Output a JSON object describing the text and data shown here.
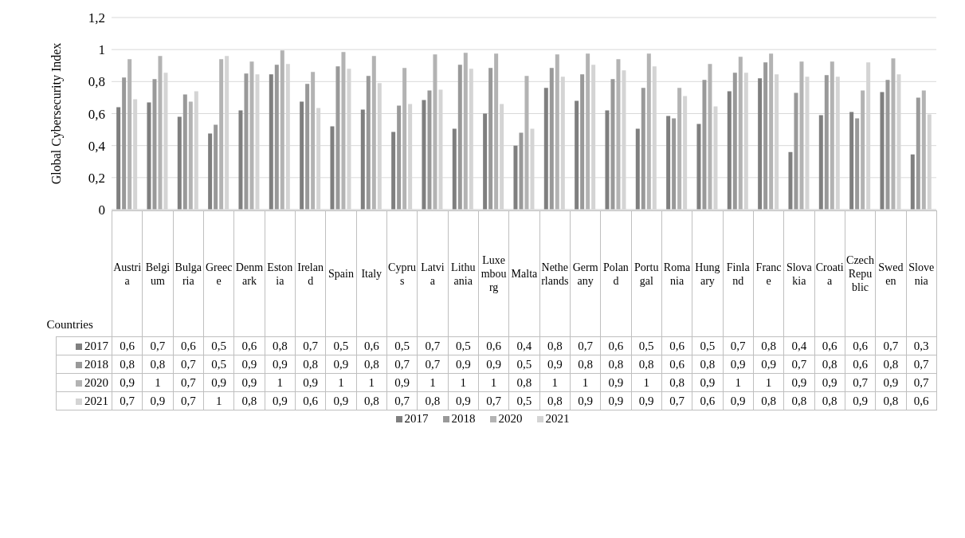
{
  "chart_data": {
    "type": "bar",
    "ylabel": "Global Cybersecurity Index",
    "xlabel": "Countries",
    "categories": [
      "Austria",
      "Belgium",
      "Bulgaria",
      "Greece",
      "Denmark",
      "Estonia",
      "Ireland",
      "Spain",
      "Italy",
      "Cyprus",
      "Latvia",
      "Lithuania",
      "Luxembourg",
      "Malta",
      "Netherlands",
      "Germany",
      "Poland",
      "Portugal",
      "Romania",
      "Hungary",
      "Finland",
      "France",
      "Slovakia",
      "Croatia",
      "Czech Republic",
      "Sweden",
      "Slovenia"
    ],
    "series": [
      {
        "name": "2017",
        "color": "#7f7f7f",
        "values": [
          0.64,
          0.67,
          0.58,
          0.475,
          0.62,
          0.845,
          0.675,
          0.52,
          0.625,
          0.485,
          0.685,
          0.505,
          0.6,
          0.4,
          0.76,
          0.68,
          0.62,
          0.505,
          0.585,
          0.535,
          0.74,
          0.82,
          0.36,
          0.59,
          0.61,
          0.735,
          0.345
        ],
        "value_labels": [
          "0,6",
          "0,7",
          "0,6",
          "0,5",
          "0,6",
          "0,8",
          "0,7",
          "0,5",
          "0,6",
          "0,5",
          "0,7",
          "0,5",
          "0,6",
          "0,4",
          "0,8",
          "0,7",
          "0,6",
          "0,5",
          "0,6",
          "0,5",
          "0,7",
          "0,8",
          "0,4",
          "0,6",
          "0,6",
          "0,7",
          "0,3"
        ]
      },
      {
        "name": "2018",
        "color": "#999999",
        "values": [
          0.825,
          0.815,
          0.72,
          0.53,
          0.85,
          0.905,
          0.785,
          0.895,
          0.835,
          0.65,
          0.745,
          0.905,
          0.885,
          0.48,
          0.885,
          0.845,
          0.815,
          0.76,
          0.57,
          0.81,
          0.855,
          0.92,
          0.73,
          0.84,
          0.57,
          0.81,
          0.7
        ],
        "value_labels": [
          "0,8",
          "0,8",
          "0,7",
          "0,5",
          "0,9",
          "0,9",
          "0,8",
          "0,9",
          "0,8",
          "0,7",
          "0,7",
          "0,9",
          "0,9",
          "0,5",
          "0,9",
          "0,8",
          "0,8",
          "0,8",
          "0,6",
          "0,8",
          "0,9",
          "0,9",
          "0,7",
          "0,8",
          "0,6",
          "0,8",
          "0,7"
        ]
      },
      {
        "name": "2020",
        "color": "#b3b3b3",
        "values": [
          0.94,
          0.96,
          0.675,
          0.94,
          0.925,
          0.995,
          0.86,
          0.985,
          0.96,
          0.885,
          0.97,
          0.98,
          0.975,
          0.835,
          0.97,
          0.975,
          0.94,
          0.975,
          0.76,
          0.91,
          0.955,
          0.975,
          0.925,
          0.925,
          0.745,
          0.945,
          0.745
        ],
        "value_labels": [
          "0,9",
          "1",
          "0,7",
          "0,9",
          "0,9",
          "1",
          "0,9",
          "1",
          "1",
          "0,9",
          "1",
          "1",
          "1",
          "0,8",
          "1",
          "1",
          "0,9",
          "1",
          "0,8",
          "0,9",
          "1",
          "1",
          "0,9",
          "0,9",
          "0,7",
          "0,9",
          "0,7"
        ]
      },
      {
        "name": "2021",
        "color": "#d4d4d4",
        "values": [
          0.69,
          0.855,
          0.74,
          0.96,
          0.845,
          0.91,
          0.635,
          0.88,
          0.79,
          0.66,
          0.75,
          0.88,
          0.66,
          0.505,
          0.83,
          0.905,
          0.87,
          0.895,
          0.71,
          0.645,
          0.855,
          0.845,
          0.83,
          0.83,
          0.92,
          0.845,
          0.595
        ],
        "value_labels": [
          "0,7",
          "0,9",
          "0,7",
          "1",
          "0,8",
          "0,9",
          "0,6",
          "0,9",
          "0,8",
          "0,7",
          "0,8",
          "0,9",
          "0,7",
          "0,5",
          "0,8",
          "0,9",
          "0,9",
          "0,9",
          "0,7",
          "0,6",
          "0,9",
          "0,8",
          "0,8",
          "0,8",
          "0,9",
          "0,8",
          "0,6"
        ]
      }
    ],
    "ylim": [
      0,
      1.2
    ],
    "yticks": [
      0,
      {
        "value": 0.2,
        "label": "0,2"
      },
      {
        "value": 0.4,
        "label": "0,4"
      },
      {
        "value": 0.6,
        "label": "0,6"
      },
      {
        "value": 0.8,
        "label": "0,8"
      },
      1,
      {
        "value": 1.2,
        "label": "1,2"
      }
    ],
    "grid": "y",
    "legend": "bottom"
  }
}
